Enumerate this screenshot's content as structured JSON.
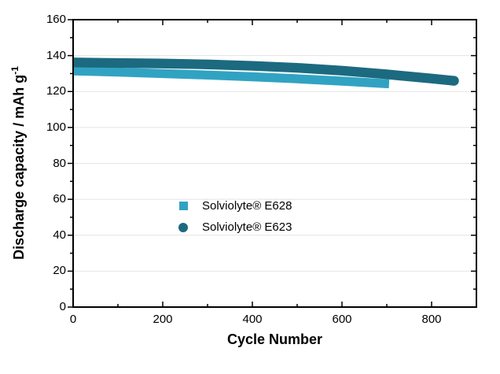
{
  "chart_data": {
    "type": "scatter",
    "title": "",
    "xlabel": "Cycle Number",
    "ylabel": "Discharge capacity / mAh g⁻¹",
    "ylabel_main": "Discharge capacity / mAh g",
    "ylabel_sup": "-1",
    "xlim": [
      0,
      900
    ],
    "ylim": [
      0,
      160
    ],
    "x_major_ticks": [
      0,
      200,
      400,
      600,
      800
    ],
    "x_minor_step": 100,
    "y_major_ticks": [
      0,
      20,
      40,
      60,
      80,
      100,
      120,
      140,
      160
    ],
    "y_minor_step": 10,
    "grid": "horizontal-major-only",
    "gridline_color": "#e4e4e4",
    "frame_color": "#000000",
    "legend_position": "center-of-plot",
    "series": [
      {
        "name": "Solviolyte® E628",
        "marker": "square",
        "color": "#31a3c2",
        "band_halfwidth": 2.5,
        "points": [
          [
            0,
            131.5
          ],
          [
            100,
            130.8
          ],
          [
            200,
            130.0
          ],
          [
            300,
            129.2
          ],
          [
            400,
            128.2
          ],
          [
            500,
            127.1
          ],
          [
            600,
            125.8
          ],
          [
            705,
            124.3
          ]
        ]
      },
      {
        "name": "Solviolyte® E623",
        "marker": "circle",
        "color": "#1c6a80",
        "band_halfwidth": 2.7,
        "points": [
          [
            0,
            136.2
          ],
          [
            100,
            135.9
          ],
          [
            200,
            135.6
          ],
          [
            300,
            135.1
          ],
          [
            400,
            134.3
          ],
          [
            500,
            133.2
          ],
          [
            600,
            131.6
          ],
          [
            700,
            129.6
          ],
          [
            800,
            127.2
          ],
          [
            850,
            126.0
          ]
        ]
      }
    ]
  }
}
